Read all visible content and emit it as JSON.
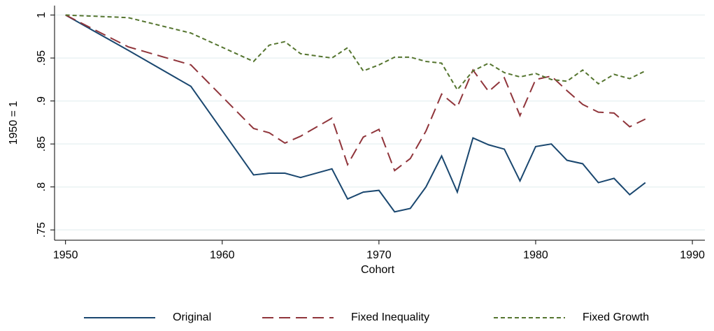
{
  "chart_data": {
    "type": "line",
    "x_label": "Cohort",
    "y_label": "1950 = 1",
    "x": [
      1950,
      1954,
      1958,
      1962,
      1963,
      1964,
      1965,
      1967,
      1968,
      1969,
      1970,
      1971,
      1972,
      1973,
      1974,
      1975,
      1976,
      1977,
      1978,
      1979,
      1980,
      1981,
      1982,
      1983,
      1984,
      1985,
      1986,
      1987
    ],
    "series": [
      {
        "name": "Original",
        "color": "#1a476f",
        "style": "solid",
        "values": [
          1.0,
          0.959,
          0.917,
          0.814,
          0.816,
          0.816,
          0.811,
          0.821,
          0.786,
          0.794,
          0.796,
          0.771,
          0.775,
          0.8,
          0.836,
          0.794,
          0.857,
          0.849,
          0.844,
          0.807,
          0.847,
          0.85,
          0.831,
          0.827,
          0.805,
          0.81,
          0.791,
          0.805
        ]
      },
      {
        "name": "Fixed Inequality",
        "color": "#90353b",
        "style": "long-dash",
        "values": [
          1.0,
          0.963,
          0.942,
          0.868,
          0.863,
          0.851,
          0.859,
          0.88,
          0.826,
          0.858,
          0.867,
          0.819,
          0.833,
          0.865,
          0.908,
          0.893,
          0.936,
          0.911,
          0.927,
          0.883,
          0.925,
          0.929,
          0.912,
          0.896,
          0.887,
          0.886,
          0.87,
          0.879
        ]
      },
      {
        "name": "Fixed Growth",
        "color": "#55752f",
        "style": "short-dash",
        "values": [
          1.0,
          0.997,
          0.979,
          0.946,
          0.965,
          0.969,
          0.955,
          0.95,
          0.962,
          0.935,
          0.942,
          0.951,
          0.951,
          0.946,
          0.944,
          0.913,
          0.935,
          0.944,
          0.933,
          0.928,
          0.932,
          0.925,
          0.923,
          0.936,
          0.92,
          0.931,
          0.926,
          0.935
        ]
      }
    ],
    "xlim": [
      1949.3,
      1990.8
    ],
    "xticks": [
      1950,
      1960,
      1970,
      1980,
      1990
    ],
    "ylim": [
      0.738,
      1.011
    ],
    "yticks": [
      {
        "value": 0.75,
        "label": ".75"
      },
      {
        "value": 0.8,
        "label": ".8"
      },
      {
        "value": 0.85,
        "label": ".85"
      },
      {
        "value": 0.9,
        "label": ".9"
      },
      {
        "value": 0.95,
        "label": ".95"
      },
      1
    ],
    "grid": true,
    "legend": "bottom"
  }
}
